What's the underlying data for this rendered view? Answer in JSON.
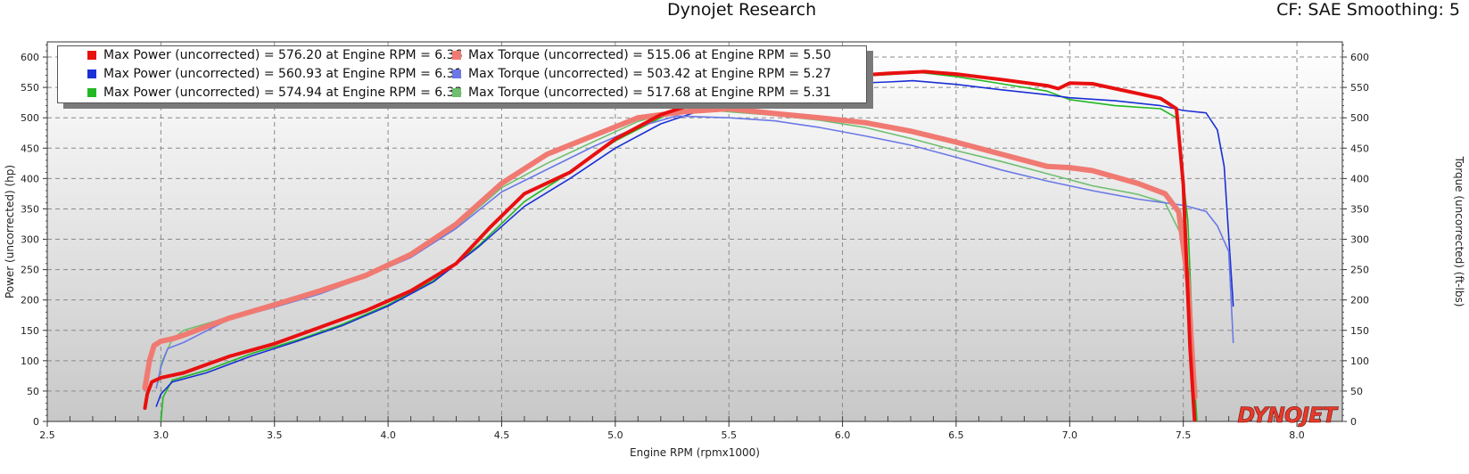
{
  "header": {
    "title": "Dynojet Research",
    "right": "CF: SAE Smoothing: 5"
  },
  "watermark": "DYNOJET",
  "colors": {
    "plot_top": "#ffffff",
    "plot_bottom": "#c8c8c8",
    "grid": "#8a8a8a",
    "run1_power": "#e81010",
    "run1_torque": "#f07a72",
    "run2_power": "#1a2fd6",
    "run2_torque": "#6b78e6",
    "run3_power": "#22b822",
    "run3_torque": "#6fbf6f"
  },
  "legend": [
    {
      "key": "run1_power",
      "text": "Max Power (uncorrected) = 576.20 at Engine RPM = 6.36"
    },
    {
      "key": "run1_torque",
      "text": "Max Torque (uncorrected) = 515.06 at Engine RPM = 5.50"
    },
    {
      "key": "run2_power",
      "text": "Max Power (uncorrected) = 560.93 at Engine RPM = 6.31"
    },
    {
      "key": "run2_torque",
      "text": "Max Torque (uncorrected) = 503.42 at Engine RPM = 5.27"
    },
    {
      "key": "run3_power",
      "text": "Max Power (uncorrected) = 574.94 at Engine RPM = 6.33"
    },
    {
      "key": "run3_torque",
      "text": "Max Torque (uncorrected) = 517.68 at Engine RPM = 5.31"
    }
  ],
  "chart_data": {
    "type": "line",
    "xlabel": "Engine RPM (rpmx1000)",
    "ylabel": "Power (uncorrected) (hp)",
    "y2label": "Torque (uncorrected) (ft-lbs)",
    "xlim": [
      2.5,
      8.2
    ],
    "ylim": [
      0,
      625
    ],
    "xticks": [
      2.5,
      3.0,
      3.5,
      4.0,
      4.5,
      5.0,
      5.5,
      6.0,
      6.5,
      7.0,
      7.5,
      8.0
    ],
    "yticks": [
      0,
      50,
      100,
      150,
      200,
      250,
      300,
      350,
      400,
      450,
      500,
      550,
      600
    ],
    "grid": true,
    "legend_position": "top-left",
    "series": [
      {
        "key": "run3_power",
        "width": 1.6,
        "points": [
          [
            3.0,
            0
          ],
          [
            3.01,
            40
          ],
          [
            3.05,
            68
          ],
          [
            3.2,
            84
          ],
          [
            3.4,
            112
          ],
          [
            3.6,
            134
          ],
          [
            3.8,
            160
          ],
          [
            4.0,
            192
          ],
          [
            4.2,
            232
          ],
          [
            4.4,
            290
          ],
          [
            4.6,
            362
          ],
          [
            4.8,
            410
          ],
          [
            5.0,
            462
          ],
          [
            5.2,
            500
          ],
          [
            5.4,
            530
          ],
          [
            5.6,
            548
          ],
          [
            5.8,
            560
          ],
          [
            6.0,
            567
          ],
          [
            6.2,
            571
          ],
          [
            6.33,
            575
          ],
          [
            6.5,
            568
          ],
          [
            6.7,
            556
          ],
          [
            6.9,
            544
          ],
          [
            7.0,
            530
          ],
          [
            7.2,
            520
          ],
          [
            7.4,
            515
          ],
          [
            7.47,
            500
          ],
          [
            7.52,
            330
          ],
          [
            7.55,
            60
          ],
          [
            7.56,
            0
          ]
        ]
      },
      {
        "key": "run3_torque",
        "width": 1.6,
        "points": [
          [
            2.99,
            65
          ],
          [
            3.0,
            95
          ],
          [
            3.05,
            135
          ],
          [
            3.1,
            150
          ],
          [
            3.3,
            172
          ],
          [
            3.5,
            192
          ],
          [
            3.7,
            212
          ],
          [
            3.9,
            240
          ],
          [
            4.1,
            272
          ],
          [
            4.3,
            320
          ],
          [
            4.5,
            385
          ],
          [
            4.7,
            425
          ],
          [
            4.9,
            460
          ],
          [
            5.1,
            494
          ],
          [
            5.31,
            517
          ],
          [
            5.5,
            510
          ],
          [
            5.7,
            504
          ],
          [
            5.9,
            496
          ],
          [
            6.1,
            484
          ],
          [
            6.3,
            466
          ],
          [
            6.5,
            446
          ],
          [
            6.7,
            428
          ],
          [
            6.9,
            408
          ],
          [
            7.1,
            388
          ],
          [
            7.3,
            374
          ],
          [
            7.42,
            360
          ],
          [
            7.5,
            300
          ],
          [
            7.53,
            200
          ],
          [
            7.56,
            40
          ]
        ]
      },
      {
        "key": "run2_power",
        "width": 1.6,
        "points": [
          [
            2.98,
            25
          ],
          [
            3.0,
            45
          ],
          [
            3.05,
            65
          ],
          [
            3.2,
            80
          ],
          [
            3.4,
            108
          ],
          [
            3.6,
            132
          ],
          [
            3.8,
            158
          ],
          [
            4.0,
            190
          ],
          [
            4.2,
            230
          ],
          [
            4.4,
            288
          ],
          [
            4.6,
            354
          ],
          [
            4.8,
            400
          ],
          [
            5.0,
            450
          ],
          [
            5.2,
            490
          ],
          [
            5.4,
            515
          ],
          [
            5.6,
            533
          ],
          [
            5.8,
            548
          ],
          [
            6.0,
            556
          ],
          [
            6.2,
            559
          ],
          [
            6.31,
            561
          ],
          [
            6.5,
            555
          ],
          [
            6.7,
            546
          ],
          [
            6.9,
            538
          ],
          [
            7.0,
            533
          ],
          [
            7.2,
            528
          ],
          [
            7.4,
            520
          ],
          [
            7.5,
            512
          ],
          [
            7.6,
            508
          ],
          [
            7.65,
            480
          ],
          [
            7.68,
            420
          ],
          [
            7.72,
            190
          ]
        ]
      },
      {
        "key": "run2_torque",
        "width": 1.6,
        "points": [
          [
            2.98,
            55
          ],
          [
            3.0,
            90
          ],
          [
            3.03,
            120
          ],
          [
            3.1,
            130
          ],
          [
            3.3,
            168
          ],
          [
            3.5,
            188
          ],
          [
            3.7,
            210
          ],
          [
            3.9,
            238
          ],
          [
            4.1,
            270
          ],
          [
            4.3,
            318
          ],
          [
            4.5,
            378
          ],
          [
            4.7,
            415
          ],
          [
            4.9,
            452
          ],
          [
            5.1,
            485
          ],
          [
            5.27,
            503
          ],
          [
            5.5,
            500
          ],
          [
            5.7,
            495
          ],
          [
            5.9,
            484
          ],
          [
            6.1,
            470
          ],
          [
            6.3,
            455
          ],
          [
            6.5,
            435
          ],
          [
            6.7,
            414
          ],
          [
            6.9,
            396
          ],
          [
            7.1,
            380
          ],
          [
            7.3,
            366
          ],
          [
            7.5,
            356
          ],
          [
            7.6,
            346
          ],
          [
            7.65,
            322
          ],
          [
            7.7,
            280
          ],
          [
            7.72,
            130
          ]
        ]
      },
      {
        "key": "run1_torque",
        "width": 6,
        "points": [
          [
            2.93,
            55
          ],
          [
            2.95,
            100
          ],
          [
            2.97,
            125
          ],
          [
            3.0,
            132
          ],
          [
            3.05,
            136
          ],
          [
            3.1,
            142
          ],
          [
            3.3,
            170
          ],
          [
            3.5,
            192
          ],
          [
            3.7,
            215
          ],
          [
            3.9,
            240
          ],
          [
            4.1,
            275
          ],
          [
            4.3,
            325
          ],
          [
            4.5,
            392
          ],
          [
            4.7,
            440
          ],
          [
            4.9,
            470
          ],
          [
            5.1,
            500
          ],
          [
            5.3,
            510
          ],
          [
            5.5,
            515
          ],
          [
            5.7,
            507
          ],
          [
            5.9,
            500
          ],
          [
            6.1,
            492
          ],
          [
            6.3,
            478
          ],
          [
            6.5,
            460
          ],
          [
            6.7,
            440
          ],
          [
            6.9,
            420
          ],
          [
            7.0,
            418
          ],
          [
            7.1,
            413
          ],
          [
            7.3,
            392
          ],
          [
            7.42,
            375
          ],
          [
            7.48,
            345
          ],
          [
            7.52,
            230
          ],
          [
            7.55,
            40
          ]
        ]
      },
      {
        "key": "run1_power",
        "width": 4,
        "points": [
          [
            2.93,
            22
          ],
          [
            2.94,
            45
          ],
          [
            2.96,
            65
          ],
          [
            3.0,
            72
          ],
          [
            3.1,
            80
          ],
          [
            3.3,
            107
          ],
          [
            3.5,
            128
          ],
          [
            3.7,
            155
          ],
          [
            3.9,
            182
          ],
          [
            4.1,
            215
          ],
          [
            4.3,
            260
          ],
          [
            4.45,
            320
          ],
          [
            4.6,
            375
          ],
          [
            4.8,
            410
          ],
          [
            5.0,
            465
          ],
          [
            5.2,
            505
          ],
          [
            5.4,
            530
          ],
          [
            5.6,
            548
          ],
          [
            5.8,
            560
          ],
          [
            6.0,
            568
          ],
          [
            6.2,
            573
          ],
          [
            6.36,
            576
          ],
          [
            6.5,
            572
          ],
          [
            6.7,
            563
          ],
          [
            6.9,
            553
          ],
          [
            6.95,
            548
          ],
          [
            7.0,
            557
          ],
          [
            7.1,
            556
          ],
          [
            7.2,
            548
          ],
          [
            7.3,
            540
          ],
          [
            7.4,
            532
          ],
          [
            7.47,
            515
          ],
          [
            7.5,
            390
          ],
          [
            7.53,
            120
          ],
          [
            7.55,
            0
          ]
        ]
      }
    ]
  }
}
